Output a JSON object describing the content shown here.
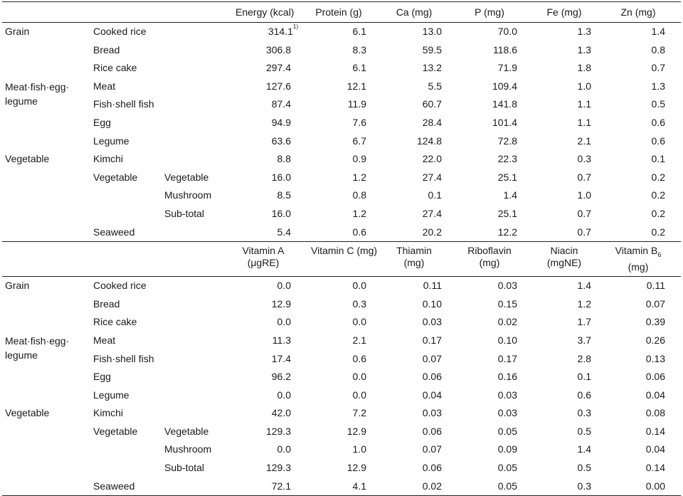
{
  "header1": [
    "Energy (kcal)",
    "Protein (g)",
    "Ca (mg)",
    "P (mg)",
    "Fe (mg)",
    "Zn (mg)"
  ],
  "header2": [
    {
      "l1": "Vitamin A",
      "l2": "(μgRE)"
    },
    {
      "l1": "Vitamin C (mg)",
      "l2": ""
    },
    {
      "l1": "Thiamin",
      "l2": "(mg)"
    },
    {
      "l1": "Riboflavin",
      "l2": "(mg)"
    },
    {
      "l1": "Niacin",
      "l2": "(mgNE)"
    },
    {
      "l1": "Vitamin B",
      "sub": "6",
      "l2": "(mg)"
    }
  ],
  "footnote_mark": "1)",
  "categories": {
    "grain": "Grain",
    "meat_l1": "Meat·fish·egg·",
    "meat_l2": "legume",
    "vegetable": "Vegetable"
  },
  "rows1": [
    {
      "c1": "Cooked rice",
      "c2": "",
      "v": [
        "314.1",
        "6.1",
        "13.0",
        "70.0",
        "1.3",
        "1.4"
      ]
    },
    {
      "c1": "Bread",
      "c2": "",
      "v": [
        "306.8",
        "8.3",
        "59.5",
        "118.6",
        "1.3",
        "0.8"
      ]
    },
    {
      "c1": "Rice cake",
      "c2": "",
      "v": [
        "297.4",
        "6.1",
        "13.2",
        "71.9",
        "1.8",
        "0.7"
      ]
    },
    {
      "c1": "Meat",
      "c2": "",
      "v": [
        "127.6",
        "12.1",
        "5.5",
        "109.4",
        "1.0",
        "1.3"
      ]
    },
    {
      "c1": "Fish·shell fish",
      "c2": "",
      "v": [
        "87.4",
        "11.9",
        "60.7",
        "141.8",
        "1.1",
        "0.5"
      ]
    },
    {
      "c1": "Egg",
      "c2": "",
      "v": [
        "94.9",
        "7.6",
        "28.4",
        "101.4",
        "1.1",
        "0.6"
      ]
    },
    {
      "c1": "Legume",
      "c2": "",
      "v": [
        "63.6",
        "6.7",
        "124.8",
        "72.8",
        "2.1",
        "0.6"
      ]
    },
    {
      "c1": "Kimchi",
      "c2": "",
      "v": [
        "8.8",
        "0.9",
        "22.0",
        "22.3",
        "0.3",
        "0.1"
      ]
    },
    {
      "c1": "Vegetable",
      "c2": "Vegetable",
      "v": [
        "16.0",
        "1.2",
        "27.4",
        "25.1",
        "0.7",
        "0.2"
      ]
    },
    {
      "c1": "",
      "c2": "Mushroom",
      "v": [
        "8.5",
        "0.8",
        "0.1",
        "1.4",
        "1.0",
        "0.2"
      ]
    },
    {
      "c1": "",
      "c2": "Sub-total",
      "v": [
        "16.0",
        "1.2",
        "27.4",
        "25.1",
        "0.7",
        "0.2"
      ]
    },
    {
      "c1": "Seaweed",
      "c2": "",
      "v": [
        "5.4",
        "0.6",
        "20.2",
        "12.2",
        "0.7",
        "0.2"
      ]
    }
  ],
  "rows2": [
    {
      "c1": "Cooked rice",
      "c2": "",
      "v": [
        "0.0",
        "0.0",
        "0.11",
        "0.03",
        "1.4",
        "0.11"
      ]
    },
    {
      "c1": "Bread",
      "c2": "",
      "v": [
        "12.9",
        "0.3",
        "0.10",
        "0.15",
        "1.2",
        "0.07"
      ]
    },
    {
      "c1": "Rice cake",
      "c2": "",
      "v": [
        "0.0",
        "0.0",
        "0.03",
        "0.02",
        "1.7",
        "0.39"
      ]
    },
    {
      "c1": "Meat",
      "c2": "",
      "v": [
        "11.3",
        "2.1",
        "0.17",
        "0.10",
        "3.7",
        "0.26"
      ]
    },
    {
      "c1": "Fish·shell fish",
      "c2": "",
      "v": [
        "17.4",
        "0.6",
        "0.07",
        "0.17",
        "2.8",
        "0.13"
      ]
    },
    {
      "c1": "Egg",
      "c2": "",
      "v": [
        "96.2",
        "0.0",
        "0.06",
        "0.16",
        "0.1",
        "0.06"
      ]
    },
    {
      "c1": "Legume",
      "c2": "",
      "v": [
        "0.0",
        "0.0",
        "0.04",
        "0.03",
        "0.6",
        "0.04"
      ]
    },
    {
      "c1": "Kimchi",
      "c2": "",
      "v": [
        "42.0",
        "7.2",
        "0.03",
        "0.03",
        "0.3",
        "0.08"
      ]
    },
    {
      "c1": "Vegetable",
      "c2": "Vegetable",
      "v": [
        "129.3",
        "12.9",
        "0.06",
        "0.05",
        "0.5",
        "0.14"
      ]
    },
    {
      "c1": "",
      "c2": "Mushroom",
      "v": [
        "0.0",
        "1.0",
        "0.07",
        "0.09",
        "1.4",
        "0.04"
      ]
    },
    {
      "c1": "",
      "c2": "Sub-total",
      "v": [
        "129.3",
        "12.9",
        "0.06",
        "0.05",
        "0.5",
        "0.14"
      ]
    },
    {
      "c1": "Seaweed",
      "c2": "",
      "v": [
        "72.1",
        "4.1",
        "0.02",
        "0.05",
        "0.3",
        "0.00"
      ]
    }
  ]
}
